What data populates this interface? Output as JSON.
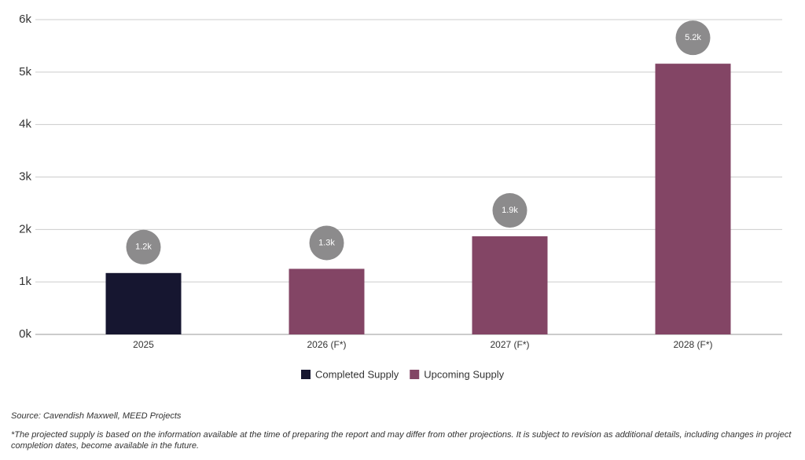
{
  "chart_data": {
    "type": "bar",
    "categories": [
      "2025",
      "2026 (F*)",
      "2027 (F*)",
      "2028 (F*)"
    ],
    "series": [
      {
        "name": "Completed Supply",
        "color": "#161630",
        "values": [
          1170,
          null,
          null,
          null
        ],
        "value_labels": [
          "1.2k",
          null,
          null,
          null
        ]
      },
      {
        "name": "Upcoming Supply",
        "color": "#834565",
        "values": [
          null,
          1250,
          1870,
          5160
        ],
        "value_labels": [
          null,
          "1.3k",
          "1.9k",
          "5.2k"
        ]
      }
    ],
    "ylim": [
      0,
      6000
    ],
    "yticks": [
      {
        "value": 0,
        "label": "0k"
      },
      {
        "value": 1000,
        "label": "1k"
      },
      {
        "value": 2000,
        "label": "2k"
      },
      {
        "value": 3000,
        "label": "3k"
      },
      {
        "value": 4000,
        "label": "4k"
      },
      {
        "value": 5000,
        "label": "5k"
      },
      {
        "value": 6000,
        "label": "6k"
      }
    ],
    "grid": true,
    "legend": "bottom",
    "source": "Source: Cavendish Maxwell, MEED Projects",
    "note": "*The projected supply is based on the information available at the time of preparing the report and may differ from other projections. It is subject to revision as additional details, including changes in project completion dates, become available in the future."
  }
}
